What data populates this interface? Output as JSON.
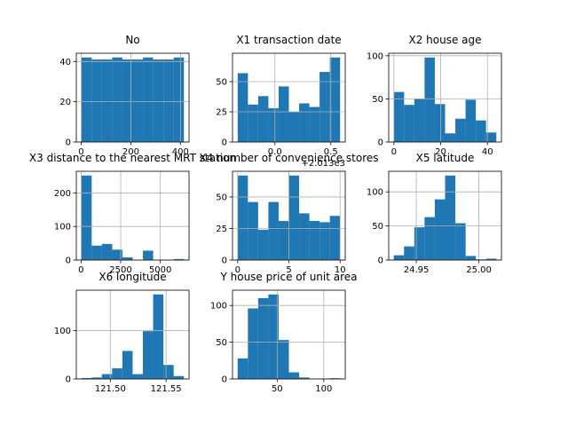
{
  "chart_data": [
    {
      "type": "histogram",
      "title": "No",
      "color": "#1f77b4",
      "grid": true,
      "bins": [
        1,
        42.3,
        83.6,
        124.9,
        166.2,
        207.5,
        248.8,
        290.1,
        331.4,
        372.7,
        414
      ],
      "values": [
        42,
        41,
        41,
        42,
        41,
        41,
        42,
        41,
        41,
        42
      ],
      "xlim": [
        -19.65,
        434.65
      ],
      "xticks": [
        0,
        200,
        400
      ],
      "ylim": [
        0,
        44.1
      ],
      "yticks": [
        0,
        20,
        40
      ]
    },
    {
      "type": "histogram",
      "title": "X1 transaction date",
      "color": "#1f77b4",
      "grid": true,
      "bins": [
        2012.667,
        2012.7586,
        2012.8502,
        2012.9418,
        2013.0334,
        2013.125,
        2013.2166,
        2013.3082,
        2013.3998,
        2013.4914,
        2013.583
      ],
      "values": [
        57,
        31,
        38,
        28,
        46,
        25,
        32,
        29,
        58,
        70
      ],
      "xlim": [
        2012.621,
        2013.629
      ],
      "xticks": [
        {
          "value": 2013.0,
          "label": "0.0"
        },
        {
          "value": 2013.5,
          "label": "0.5"
        }
      ],
      "x_offset_label": "+2.013e3",
      "ylim": [
        0,
        73.5
      ],
      "yticks": [
        0,
        25,
        50
      ]
    },
    {
      "type": "histogram",
      "title": "X2 house age",
      "color": "#1f77b4",
      "grid": true,
      "bins": [
        0,
        4.38,
        8.76,
        13.14,
        17.52,
        21.9,
        26.28,
        30.66,
        35.04,
        39.42,
        43.8
      ],
      "values": [
        58,
        43,
        50,
        98,
        44,
        10,
        27,
        49,
        25,
        11
      ],
      "xlim": [
        -2.19,
        45.99
      ],
      "xticks": [
        0,
        20,
        40
      ],
      "ylim": [
        0,
        102.9
      ],
      "yticks": [
        0,
        50,
        100
      ]
    },
    {
      "type": "histogram",
      "title": "X3 distance to the nearest MRT station",
      "color": "#1f77b4",
      "grid": true,
      "bins": [
        23.38,
        669.84,
        1316.3,
        1962.77,
        2609.23,
        3255.7,
        3902.16,
        4548.62,
        5195.09,
        5841.55,
        6488.02
      ],
      "values": [
        252,
        43,
        48,
        31,
        8,
        0,
        28,
        0,
        1,
        3
      ],
      "xlim": [
        -299.9,
        6811.3
      ],
      "xticks": [
        0,
        2500,
        5000
      ],
      "ylim": [
        0,
        264.6
      ],
      "yticks": [
        0,
        100,
        200
      ]
    },
    {
      "type": "histogram",
      "title": "X4 number of convenience stores",
      "color": "#1f77b4",
      "grid": true,
      "bins": [
        0,
        1,
        2,
        3,
        4,
        5,
        6,
        7,
        8,
        9,
        10
      ],
      "values": [
        67,
        46,
        24,
        46,
        31,
        67,
        37,
        31,
        30,
        35
      ],
      "xlim": [
        -0.5,
        10.5
      ],
      "xticks": [
        0,
        5,
        10
      ],
      "ylim": [
        0,
        70.35
      ],
      "yticks": [
        0,
        25,
        50
      ]
    },
    {
      "type": "histogram",
      "title": "X5 latitude",
      "color": "#1f77b4",
      "grid": true,
      "bins": [
        24.932,
        24.9402,
        24.9484,
        24.9566,
        24.9648,
        24.973,
        24.9812,
        24.9894,
        24.9976,
        25.0058,
        25.014
      ],
      "values": [
        7,
        20,
        48,
        63,
        89,
        124,
        54,
        6,
        1,
        2
      ],
      "xlim": [
        24.928,
        25.018
      ],
      "xticks": [
        {
          "value": 24.95,
          "label": "24.95"
        },
        {
          "value": 25.0,
          "label": "25.00"
        }
      ],
      "ylim": [
        0,
        130.2
      ],
      "yticks": [
        0,
        50,
        100
      ]
    },
    {
      "type": "histogram",
      "title": "X6 longitude",
      "color": "#1f77b4",
      "grid": true,
      "bins": [
        121.474,
        121.4832,
        121.4924,
        121.5016,
        121.5108,
        121.52,
        121.5292,
        121.5384,
        121.5476,
        121.5568,
        121.566
      ],
      "values": [
        2,
        3,
        10,
        22,
        58,
        10,
        99,
        175,
        29,
        6
      ],
      "xlim": [
        121.4695,
        121.5706
      ],
      "xticks": [
        {
          "value": 121.5,
          "label": "121.50"
        },
        {
          "value": 121.55,
          "label": "121.55"
        }
      ],
      "ylim": [
        0,
        183.75
      ],
      "yticks": [
        0,
        100
      ]
    },
    {
      "type": "histogram",
      "title": "Y house price of unit area",
      "color": "#1f77b4",
      "grid": true,
      "bins": [
        7.6,
        18.59,
        29.58,
        40.57,
        51.56,
        62.55,
        73.54,
        84.53,
        95.52,
        106.51,
        117.5
      ],
      "values": [
        28,
        96,
        110,
        115,
        53,
        9,
        2,
        0,
        0,
        1
      ],
      "xlim": [
        2.1,
        123.0
      ],
      "xticks": [
        50,
        100
      ],
      "ylim": [
        0,
        120.75
      ],
      "yticks": [
        0,
        50,
        100
      ]
    }
  ]
}
